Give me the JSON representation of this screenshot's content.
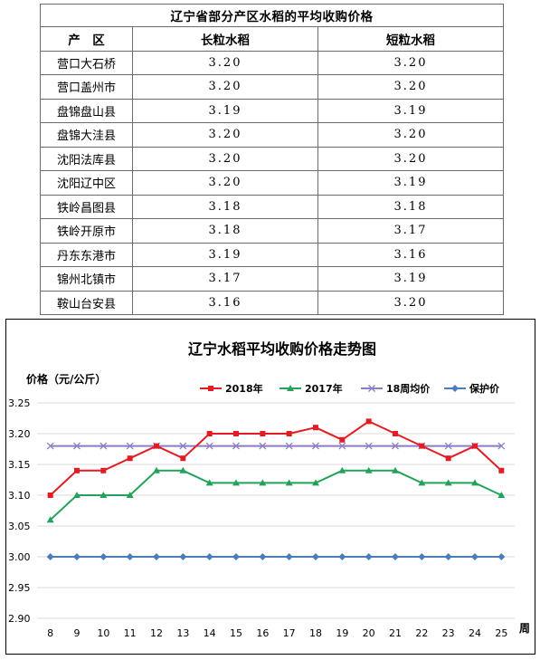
{
  "table": {
    "title": "辽宁省部分产区水稻的平均收购价格",
    "headers": [
      "产　区",
      "长粒水稻",
      "短粒水稻"
    ],
    "rows": [
      [
        "营口大石桥",
        "3.20",
        "3.20"
      ],
      [
        "营口盖州市",
        "3.20",
        "3.20"
      ],
      [
        "盘锦盘山县",
        "3.19",
        "3.19"
      ],
      [
        "盘锦大洼县",
        "3.20",
        "3.20"
      ],
      [
        "沈阳法库县",
        "3.20",
        "3.20"
      ],
      [
        "沈阳辽中区",
        "3.20",
        "3.19"
      ],
      [
        "铁岭昌图县",
        "3.18",
        "3.18"
      ],
      [
        "铁岭开原市",
        "3.18",
        "3.17"
      ],
      [
        "丹东东港市",
        "3.19",
        "3.16"
      ],
      [
        "锦州北镇市",
        "3.17",
        "3.19"
      ],
      [
        "鞍山台安县",
        "3.16",
        "3.20"
      ]
    ]
  },
  "chart_data": {
    "type": "line",
    "title": "辽宁水稻平均收购价格走势图",
    "ylabel": "价格（元/公斤）",
    "xlabel": "周",
    "x": [
      8,
      9,
      10,
      11,
      12,
      13,
      14,
      15,
      16,
      17,
      18,
      19,
      20,
      21,
      22,
      23,
      24,
      25
    ],
    "y_ticks": [
      "3.25",
      "3.20",
      "3.15",
      "3.10",
      "3.05",
      "3.00",
      "2.95",
      "2.90"
    ],
    "ylim": [
      2.9,
      3.25
    ],
    "grid": "horizontal",
    "legend_position": "top",
    "series": [
      {
        "name": "2018年",
        "color": "#e31b23",
        "marker": "square",
        "values": [
          3.1,
          3.14,
          3.14,
          3.16,
          3.18,
          3.16,
          3.2,
          3.2,
          3.2,
          3.2,
          3.21,
          3.19,
          3.22,
          3.2,
          3.18,
          3.16,
          3.18,
          3.14
        ]
      },
      {
        "name": "2017年",
        "color": "#23a35a",
        "marker": "triangle",
        "values": [
          3.06,
          3.1,
          3.1,
          3.1,
          3.14,
          3.14,
          3.12,
          3.12,
          3.12,
          3.12,
          3.12,
          3.14,
          3.14,
          3.14,
          3.12,
          3.12,
          3.12,
          3.1
        ]
      },
      {
        "name": "18周均价",
        "color": "#8e7cc3",
        "marker": "cross",
        "values": [
          3.18,
          3.18,
          3.18,
          3.18,
          3.18,
          3.18,
          3.18,
          3.18,
          3.18,
          3.18,
          3.18,
          3.18,
          3.18,
          3.18,
          3.18,
          3.18,
          3.18,
          3.18
        ]
      },
      {
        "name": "保护价",
        "color": "#4a7ebb",
        "marker": "diamond",
        "values": [
          3.0,
          3.0,
          3.0,
          3.0,
          3.0,
          3.0,
          3.0,
          3.0,
          3.0,
          3.0,
          3.0,
          3.0,
          3.0,
          3.0,
          3.0,
          3.0,
          3.0,
          3.0
        ]
      }
    ]
  }
}
